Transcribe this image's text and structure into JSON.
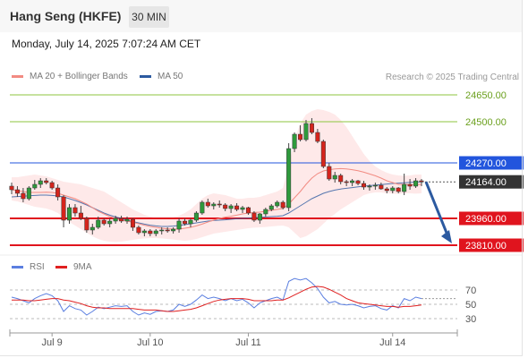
{
  "header": {
    "title": "Hang Seng (HKFE)",
    "timeframe": "30 MIN"
  },
  "datetime": "Monday, July 14, 2025 7:07:24 AM CET",
  "legend": {
    "bollinger": {
      "label": "MA 20 + Bollinger Bands",
      "color": "#f28b82"
    },
    "ma50": {
      "label": "MA 50",
      "color": "#2c5aa0"
    },
    "rsi": {
      "label": "RSI",
      "color": "#5b7fe0"
    },
    "rsi_ma": {
      "label": "9MA",
      "color": "#e02020"
    }
  },
  "credit": "Research © 2025 Trading Central",
  "chart_data": [
    {
      "type": "candlestick",
      "title": "",
      "x_tick_labels": [
        "Jul 9",
        "Jul 10",
        "Jul 11",
        "Jul 14"
      ],
      "y_range": [
        23790,
        24720
      ],
      "current_price": {
        "label": "24164.00",
        "value": 24164
      },
      "levels": [
        {
          "label": "24650.00",
          "value": 24650,
          "kind": "target",
          "color": "#8cc63f"
        },
        {
          "label": "24500.00",
          "value": 24500,
          "kind": "target",
          "color": "#8cc63f"
        },
        {
          "label": "24270.00",
          "value": 24270,
          "kind": "pivot",
          "color": "#2255dd"
        },
        {
          "label": "23960.00",
          "value": 23960,
          "kind": "support",
          "color": "#e0141e"
        },
        {
          "label": "23810.00",
          "value": 23810,
          "kind": "support",
          "color": "#e0141e"
        }
      ],
      "candles": [
        [
          24140,
          24160,
          24095,
          24120
        ],
        [
          24120,
          24140,
          24080,
          24100
        ],
        [
          24100,
          24130,
          24050,
          24070
        ],
        [
          24070,
          24140,
          24060,
          24130
        ],
        [
          24130,
          24175,
          24120,
          24150
        ],
        [
          24150,
          24185,
          24130,
          24170
        ],
        [
          24170,
          24185,
          24150,
          24160
        ],
        [
          24160,
          24170,
          24120,
          24130
        ],
        [
          24130,
          24150,
          24060,
          24080
        ],
        [
          24080,
          24090,
          23910,
          23950
        ],
        [
          23950,
          24040,
          23930,
          24020
        ],
        [
          24020,
          24040,
          23970,
          23990
        ],
        [
          23990,
          24030,
          23950,
          23960
        ],
        [
          23960,
          23970,
          23880,
          23895
        ],
        [
          23895,
          23930,
          23870,
          23910
        ],
        [
          23910,
          23970,
          23900,
          23950
        ],
        [
          23950,
          23960,
          23920,
          23930
        ],
        [
          23930,
          23960,
          23910,
          23945
        ],
        [
          23945,
          23975,
          23930,
          23960
        ],
        [
          23960,
          23975,
          23935,
          23945
        ],
        [
          23945,
          23970,
          23930,
          23955
        ],
        [
          23955,
          23960,
          23890,
          23910
        ],
        [
          23910,
          23920,
          23870,
          23880
        ],
        [
          23880,
          23900,
          23860,
          23890
        ],
        [
          23890,
          23900,
          23860,
          23875
        ],
        [
          23875,
          23900,
          23860,
          23890
        ],
        [
          23890,
          23910,
          23870,
          23895
        ],
        [
          23895,
          23910,
          23880,
          23890
        ],
        [
          23890,
          23910,
          23875,
          23900
        ],
        [
          23900,
          23960,
          23880,
          23945
        ],
        [
          23945,
          23960,
          23920,
          23930
        ],
        [
          23930,
          23960,
          23910,
          23950
        ],
        [
          23950,
          24000,
          23940,
          23990
        ],
        [
          23990,
          24060,
          23980,
          24050
        ],
        [
          24050,
          24070,
          24020,
          24030
        ],
        [
          24030,
          24050,
          24010,
          24040
        ],
        [
          24040,
          24060,
          24020,
          24035
        ],
        [
          24035,
          24045,
          24000,
          24015
        ],
        [
          24015,
          24040,
          23990,
          24030
        ],
        [
          24030,
          24045,
          24000,
          24010
        ],
        [
          24010,
          24030,
          23990,
          24020
        ],
        [
          24020,
          24025,
          23980,
          23990
        ],
        [
          23990,
          24000,
          23940,
          23950
        ],
        [
          23950,
          23990,
          23930,
          23985
        ],
        [
          23985,
          24020,
          23970,
          24010
        ],
        [
          24010,
          24040,
          24000,
          24030
        ],
        [
          24030,
          24060,
          24020,
          24050
        ],
        [
          24050,
          24060,
          24010,
          24020
        ],
        [
          24020,
          24380,
          24000,
          24350
        ],
        [
          24350,
          24440,
          24330,
          24430
        ],
        [
          24430,
          24480,
          24390,
          24400
        ],
        [
          24400,
          24510,
          24390,
          24490
        ],
        [
          24490,
          24520,
          24430,
          24440
        ],
        [
          24440,
          24460,
          24380,
          24390
        ],
        [
          24390,
          24400,
          24240,
          24250
        ],
        [
          24250,
          24270,
          24170,
          24180
        ],
        [
          24180,
          24220,
          24160,
          24200
        ],
        [
          24200,
          24210,
          24150,
          24165
        ],
        [
          24165,
          24175,
          24140,
          24160
        ],
        [
          24160,
          24180,
          24140,
          24170
        ],
        [
          24170,
          24175,
          24145,
          24155
        ],
        [
          24155,
          24170,
          24120,
          24135
        ],
        [
          24135,
          24150,
          24115,
          24140
        ],
        [
          24140,
          24160,
          24120,
          24145
        ],
        [
          24145,
          24160,
          24120,
          24125
        ],
        [
          24125,
          24135,
          24100,
          24115
        ],
        [
          24115,
          24140,
          24100,
          24130
        ],
        [
          24130,
          24135,
          24100,
          24110
        ],
        [
          24110,
          24210,
          24090,
          24150
        ],
        [
          24150,
          24180,
          24120,
          24140
        ],
        [
          24140,
          24185,
          24130,
          24170
        ],
        [
          24170,
          24180,
          24140,
          24164
        ]
      ],
      "ma20": [
        24120,
        24115,
        24110,
        24105,
        24105,
        24105,
        24106,
        24105,
        24100,
        24090,
        24080,
        24070,
        24055,
        24040,
        24020,
        24000,
        23985,
        23970,
        23960,
        23950,
        23945,
        23938,
        23930,
        23922,
        23915,
        23910,
        23905,
        23902,
        23900,
        23900,
        23905,
        23910,
        23918,
        23928,
        23940,
        23950,
        23960,
        23967,
        23972,
        23978,
        23985,
        23990,
        23993,
        23995,
        24000,
        24005,
        24010,
        24015,
        24040,
        24075,
        24110,
        24150,
        24185,
        24210,
        24225,
        24232,
        24236,
        24238,
        24236,
        24232,
        24226,
        24218,
        24208,
        24198,
        24185,
        24170,
        24160,
        24150,
        24150,
        24148,
        24148,
        24150
      ],
      "bb_upper": [
        24190,
        24190,
        24195,
        24200,
        24205,
        24200,
        24195,
        24185,
        24175,
        24165,
        24160,
        24155,
        24150,
        24140,
        24130,
        24120,
        24110,
        24090,
        24070,
        24050,
        24030,
        24010,
        23995,
        23980,
        23970,
        23962,
        23960,
        23960,
        23965,
        23975,
        23990,
        24010,
        24040,
        24070,
        24090,
        24100,
        24095,
        24090,
        24080,
        24070,
        24070,
        24075,
        24075,
        24080,
        24090,
        24100,
        24110,
        24130,
        24260,
        24400,
        24490,
        24540,
        24560,
        24570,
        24565,
        24555,
        24540,
        24510,
        24470,
        24420,
        24370,
        24320,
        24280,
        24250,
        24230,
        24215,
        24205,
        24200,
        24198,
        24200,
        24205,
        24205
      ],
      "bb_lower": [
        24060,
        24055,
        24045,
        24035,
        24025,
        24020,
        24015,
        24005,
        23990,
        23965,
        23940,
        23920,
        23900,
        23880,
        23860,
        23845,
        23835,
        23830,
        23828,
        23830,
        23835,
        23840,
        23845,
        23848,
        23850,
        23850,
        23848,
        23845,
        23842,
        23838,
        23835,
        23838,
        23845,
        23855,
        23865,
        23875,
        23880,
        23885,
        23890,
        23895,
        23900,
        23905,
        23908,
        23910,
        23912,
        23915,
        23918,
        23920,
        23910,
        23880,
        23850,
        23860,
        23880,
        23900,
        23930,
        23960,
        23985,
        24010,
        24030,
        24050,
        24070,
        24090,
        24100,
        24105,
        24105,
        24100,
        24098,
        24096,
        24100,
        24100,
        24098,
        24100
      ],
      "ma50": [
        24080,
        24082,
        24084,
        24086,
        24088,
        24090,
        24090,
        24088,
        24085,
        24080,
        24070,
        24060,
        24048,
        24035,
        24020,
        24005,
        23990,
        23978,
        23968,
        23960,
        23950,
        23942,
        23935,
        23928,
        23922,
        23918,
        23915,
        23915,
        23917,
        23920,
        23925,
        23930,
        23935,
        23940,
        23945,
        23948,
        23950,
        23952,
        23955,
        23958,
        23960,
        23962,
        23964,
        23966,
        23968,
        23970,
        23972,
        23975,
        23990,
        24010,
        24030,
        24050,
        24070,
        24085,
        24100,
        24110,
        24118,
        24124,
        24128,
        24132,
        24136,
        24140,
        24143,
        24146,
        24149,
        24152,
        24155,
        24157,
        24159,
        24161,
        24163,
        24164
      ]
    },
    {
      "type": "line",
      "title": "RSI",
      "y_tick_labels": [
        "70",
        "50",
        "30"
      ],
      "y_ticks": [
        70,
        50,
        30
      ],
      "y_range": [
        15,
        85
      ],
      "series": [
        {
          "name": "RSI",
          "values": [
            60,
            58,
            55,
            52,
            58,
            62,
            65,
            62,
            55,
            40,
            48,
            44,
            42,
            35,
            40,
            46,
            44,
            46,
            48,
            47,
            48,
            40,
            35,
            38,
            36,
            40,
            41,
            40,
            42,
            50,
            47,
            50,
            56,
            63,
            58,
            60,
            58,
            55,
            58,
            55,
            57,
            52,
            45,
            52,
            55,
            58,
            60,
            56,
            82,
            86,
            84,
            86,
            80,
            72,
            60,
            52,
            54,
            50,
            49,
            50,
            48,
            45,
            47,
            48,
            44,
            42,
            48,
            45,
            58,
            55,
            60,
            58
          ]
        },
        {
          "name": "9MA",
          "values": [
            56,
            56,
            56,
            55,
            55,
            56,
            57,
            58,
            58,
            56,
            55,
            53,
            51,
            48,
            46,
            45,
            45,
            44,
            44,
            44,
            44,
            44,
            43,
            42,
            42,
            42,
            41,
            40,
            40,
            41,
            42,
            43,
            45,
            48,
            51,
            54,
            56,
            57,
            58,
            58,
            58,
            57,
            55,
            55,
            55,
            55,
            56,
            56,
            59,
            63,
            67,
            71,
            74,
            75,
            74,
            71,
            67,
            63,
            58,
            55,
            52,
            51,
            50,
            49,
            48,
            47,
            47,
            46,
            47,
            47,
            48,
            49
          ]
        }
      ]
    }
  ]
}
